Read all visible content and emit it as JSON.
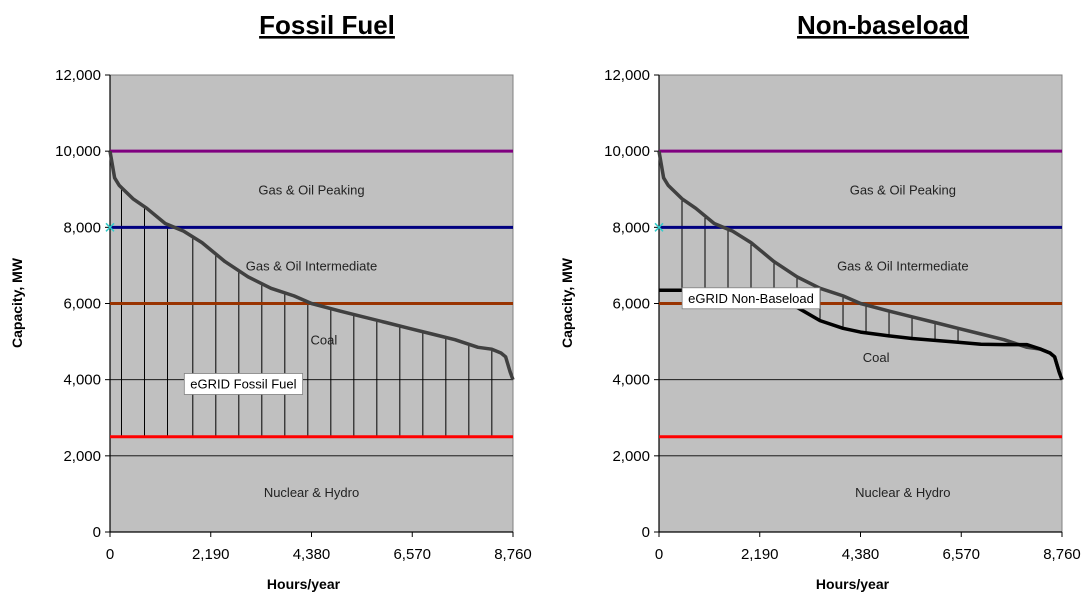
{
  "chart_data": [
    {
      "type": "area",
      "title": "Fossil Fuel",
      "xlabel": "Hours/year",
      "ylabel": "Capacity, MW",
      "xlim": [
        0,
        8760
      ],
      "ylim": [
        0,
        12000
      ],
      "x_ticks": [
        "0",
        "2,190",
        "4,380",
        "6,570",
        "8,760"
      ],
      "y_ticks": [
        "0",
        "2,000",
        "4,000",
        "6,000",
        "8,000",
        "10,000",
        "12,000"
      ],
      "grid": true,
      "colors": {
        "plot_bg": "#c0c0c0",
        "peaking_line": "#800080",
        "intermediate_line": "#000080",
        "coal_line": "#993300",
        "baseload_line": "#ff0000",
        "load_curve": "#404040",
        "marker": "#33cccc"
      },
      "thresholds": [
        10000,
        8000,
        6000,
        2500
      ],
      "regions": [
        {
          "label": "Gas & Oil Peaking",
          "x": 4380,
          "y": 9000
        },
        {
          "label": "Gas & Oil Intermediate",
          "x": 4380,
          "y": 7000
        },
        {
          "label": "Coal",
          "x": 4650,
          "y": 5050
        },
        {
          "label": "Nuclear & Hydro",
          "x": 4380,
          "y": 1050
        }
      ],
      "callout": {
        "label": "eGRID Fossil Fuel",
        "x": 2900,
        "y": 3900
      },
      "load_curve": {
        "x": [
          0,
          100,
          200,
          500,
          800,
          1200,
          1600,
          2000,
          2500,
          3000,
          3500,
          4000,
          4380,
          5000,
          5500,
          6000,
          6500,
          7000,
          7500,
          8000,
          8300,
          8500,
          8600,
          8700,
          8760
        ],
        "y": [
          10000,
          9300,
          9100,
          8750,
          8500,
          8100,
          7900,
          7600,
          7100,
          6700,
          6400,
          6200,
          6000,
          5800,
          5650,
          5500,
          5350,
          5200,
          5050,
          4850,
          4800,
          4700,
          4600,
          4200,
          4000
        ]
      },
      "hatch_x": [
        250,
        750,
        1250,
        1800,
        2300,
        2800,
        3300,
        3800,
        4300,
        4800,
        5300,
        5800,
        6300,
        6800,
        7300,
        7800,
        8300
      ],
      "hatch_bottom": 2500,
      "marker": {
        "x": 0,
        "y": 8000
      }
    },
    {
      "type": "area",
      "title": "Non-baseload",
      "xlabel": "Hours/year",
      "ylabel": "Capacity, MW",
      "xlim": [
        0,
        8760
      ],
      "ylim": [
        0,
        12000
      ],
      "x_ticks": [
        "0",
        "2,190",
        "4,380",
        "6,570",
        "8,760"
      ],
      "y_ticks": [
        "0",
        "2,000",
        "4,000",
        "6,000",
        "8,000",
        "10,000",
        "12,000"
      ],
      "grid": true,
      "colors": {
        "plot_bg": "#c0c0c0",
        "peaking_line": "#800080",
        "intermediate_line": "#000080",
        "coal_line": "#993300",
        "baseload_line": "#ff0000",
        "load_curve": "#404040",
        "nonbaseload_curve": "#000000",
        "marker": "#33cccc"
      },
      "thresholds": [
        10000,
        8000,
        6000,
        2500
      ],
      "regions": [
        {
          "label": "Gas & Oil Peaking",
          "x": 5300,
          "y": 9000
        },
        {
          "label": "Gas & Oil Intermediate",
          "x": 5300,
          "y": 7000
        },
        {
          "label": "Coal",
          "x": 4720,
          "y": 4600
        },
        {
          "label": "Nuclear & Hydro",
          "x": 5300,
          "y": 1050
        }
      ],
      "callout": {
        "label": "eGRID Non-Baseload",
        "x": 2000,
        "y": 6150
      },
      "load_curve": {
        "x": [
          0,
          100,
          200,
          500,
          800,
          1200,
          1600,
          2000,
          2500,
          3000,
          3500,
          4000,
          4380,
          5000,
          5500,
          6000,
          6500,
          7000,
          7500,
          8000,
          8300,
          8500,
          8600,
          8700,
          8760
        ],
        "y": [
          10000,
          9300,
          9100,
          8750,
          8500,
          8100,
          7900,
          7600,
          7100,
          6700,
          6400,
          6200,
          6000,
          5800,
          5650,
          5500,
          5350,
          5200,
          5050,
          4850,
          4800,
          4700,
          4600,
          4200,
          4000
        ]
      },
      "nonbaseload_curve": {
        "x": [
          0,
          300,
          700,
          1100,
          1500,
          2000,
          2500,
          3000,
          3500,
          4000,
          4380,
          5000,
          5500,
          6000,
          6500,
          7000,
          7500,
          8000,
          8300,
          8500,
          8600,
          8700,
          8760
        ],
        "y": [
          6350,
          6350,
          6350,
          6350,
          6350,
          6350,
          6300,
          5900,
          5550,
          5350,
          5250,
          5150,
          5080,
          5030,
          4980,
          4930,
          4920,
          4920,
          4800,
          4700,
          4600,
          4200,
          4000
        ]
      },
      "hatch_x": [
        500,
        1000,
        1500,
        2000,
        2500,
        3000,
        3500,
        4000,
        4500,
        5000,
        5500,
        6000,
        6500
      ],
      "marker": {
        "x": 0,
        "y": 8000
      }
    }
  ]
}
